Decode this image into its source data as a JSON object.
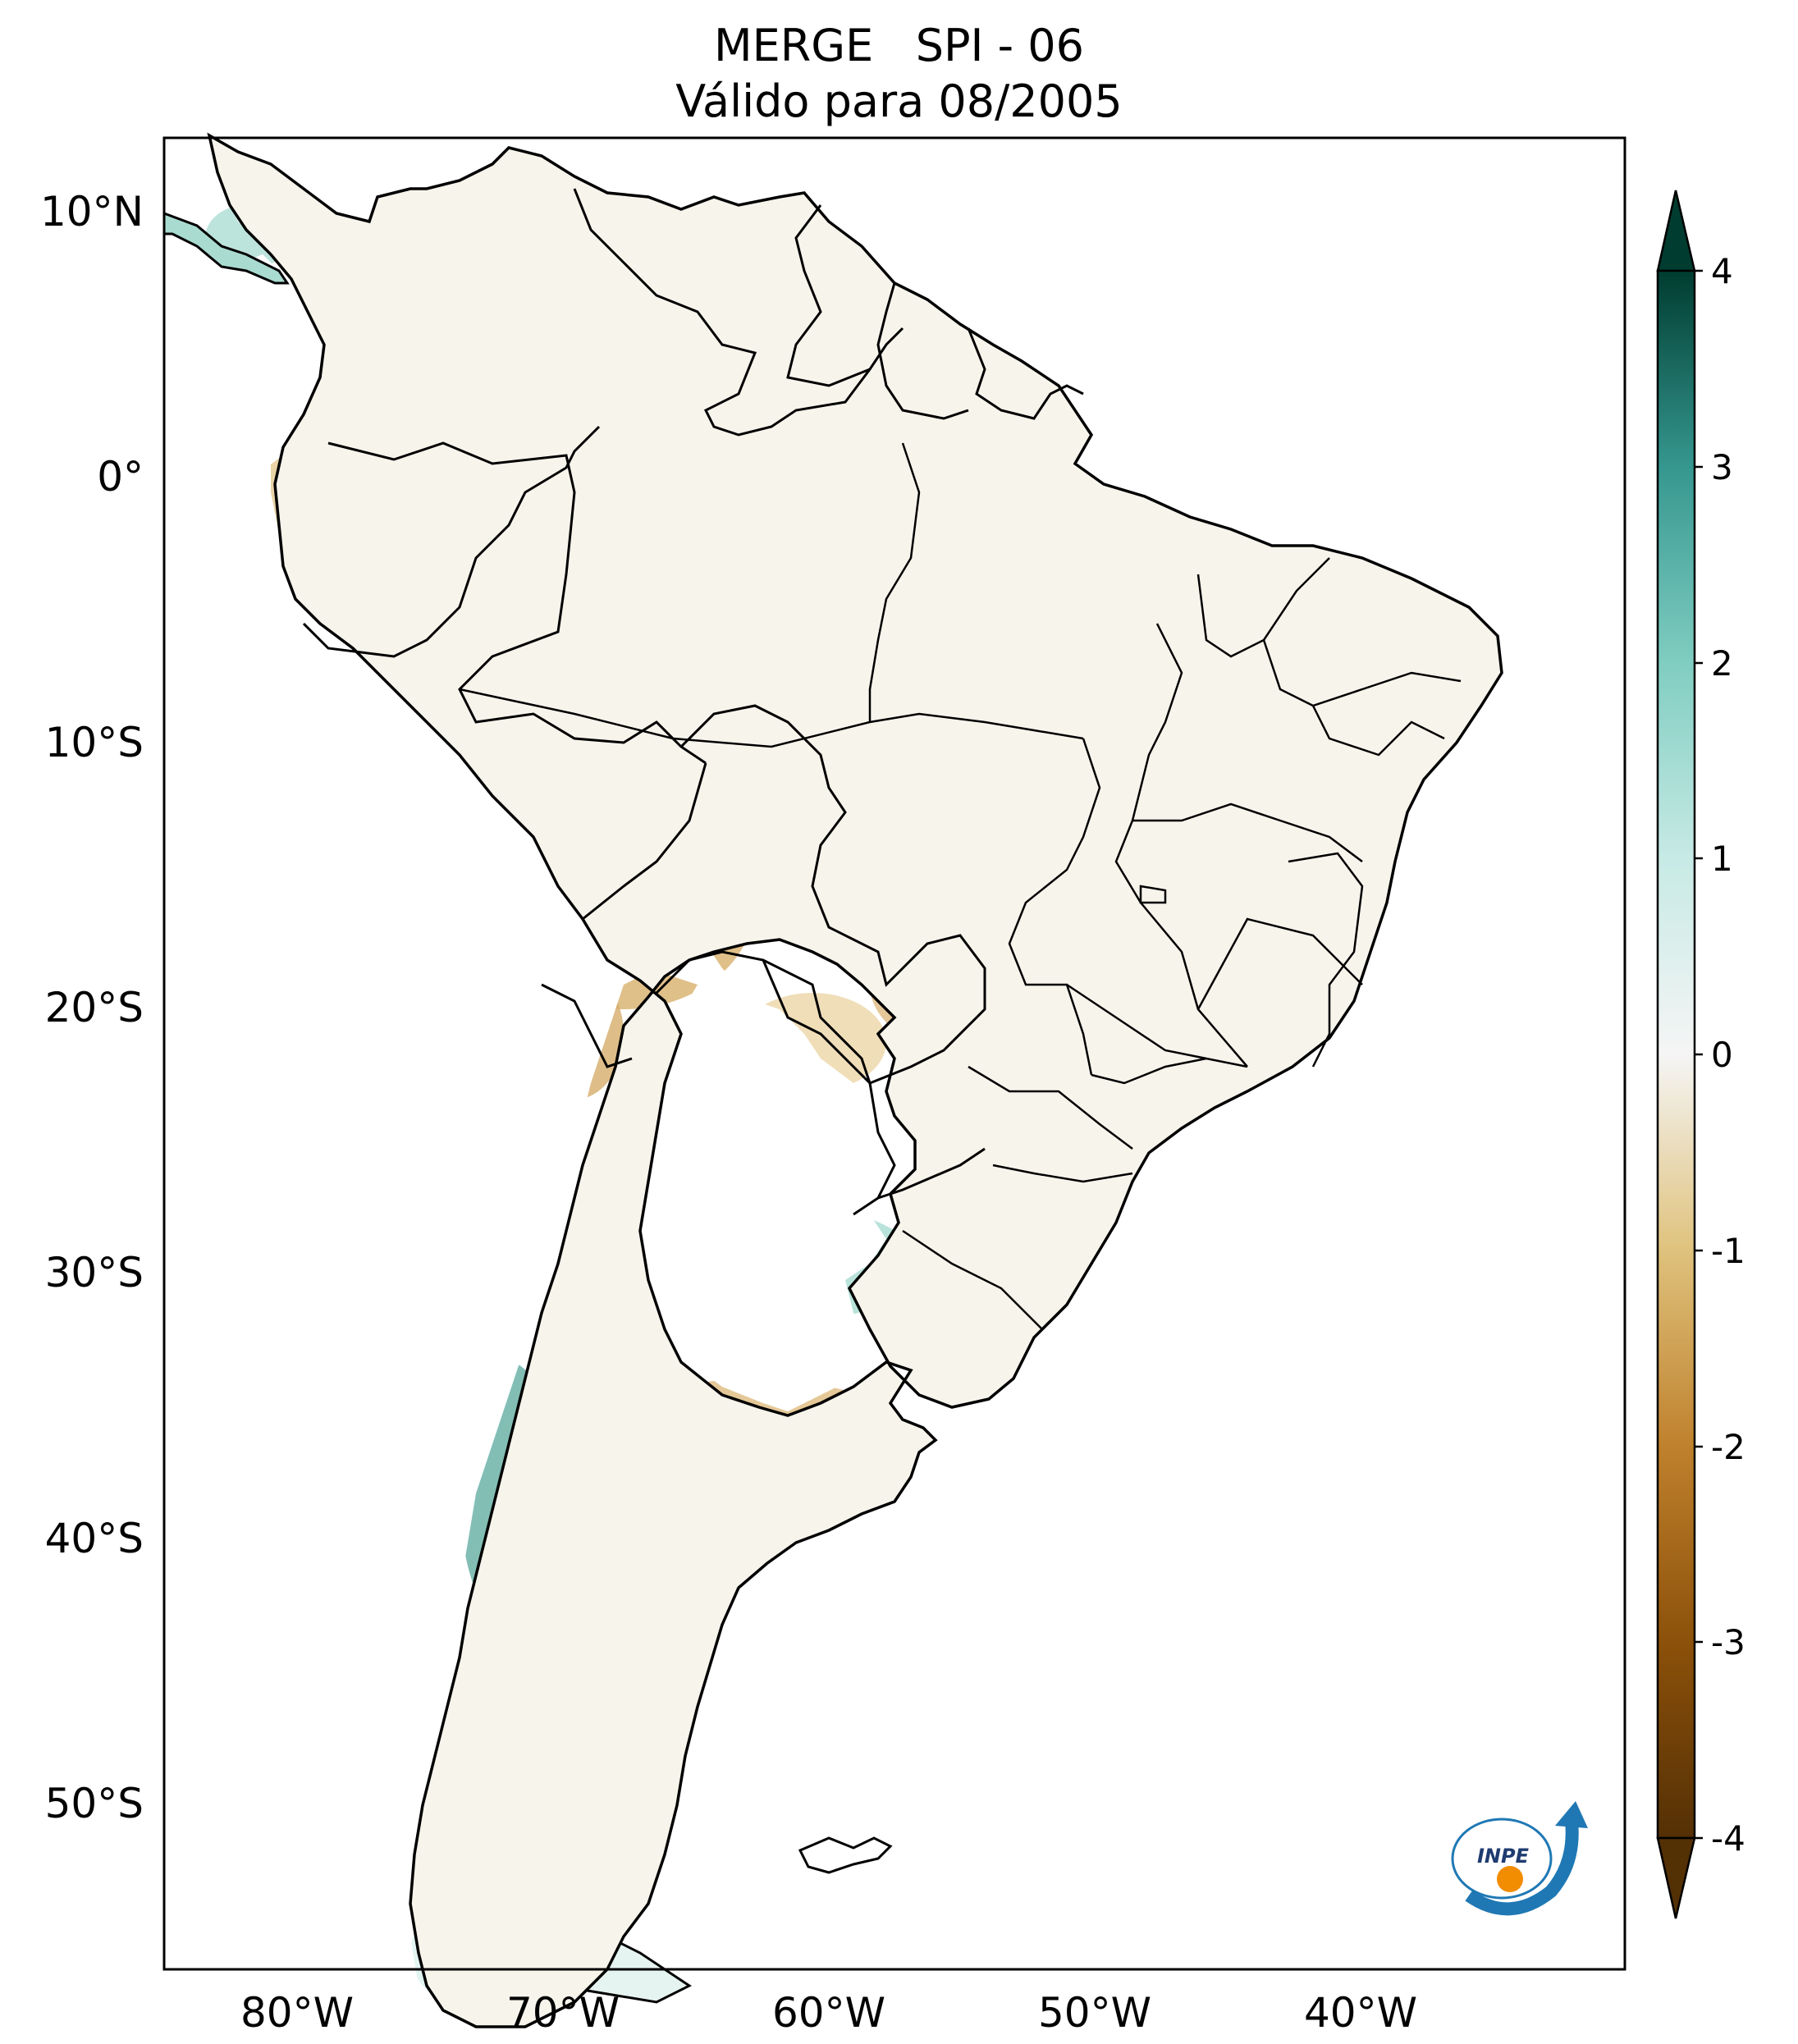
{
  "title": {
    "line1": "MERGE   SPI - 06",
    "line2": "Válido para 08/2005"
  },
  "map": {
    "lat_ticks": [
      "10°N",
      "0°",
      "10°S",
      "20°S",
      "30°S",
      "40°S",
      "50°S"
    ],
    "lon_ticks": [
      "80°W",
      "70°W",
      "60°W",
      "50°W",
      "40°W"
    ],
    "lon_range": [
      -85,
      -30
    ],
    "lat_range": [
      -56,
      13
    ]
  },
  "colorbar": {
    "labels": [
      "4",
      "3",
      "2",
      "1",
      "0",
      "-1",
      "-2",
      "-3",
      "-4"
    ],
    "range": [
      -4,
      4
    ],
    "colormap": "BrBG",
    "extend": "both"
  },
  "logo": {
    "text": "INPE"
  },
  "colors": {
    "dry_strong": "#543005",
    "dry": "#c98f3f",
    "dry_light": "#e9cf97",
    "neutral": "#f5f5f5",
    "wet_light": "#a6ddd4",
    "wet": "#3a9b8f",
    "wet_strong": "#003c30",
    "logo_blue": "#1f78b4",
    "logo_orange": "#f28c00"
  }
}
